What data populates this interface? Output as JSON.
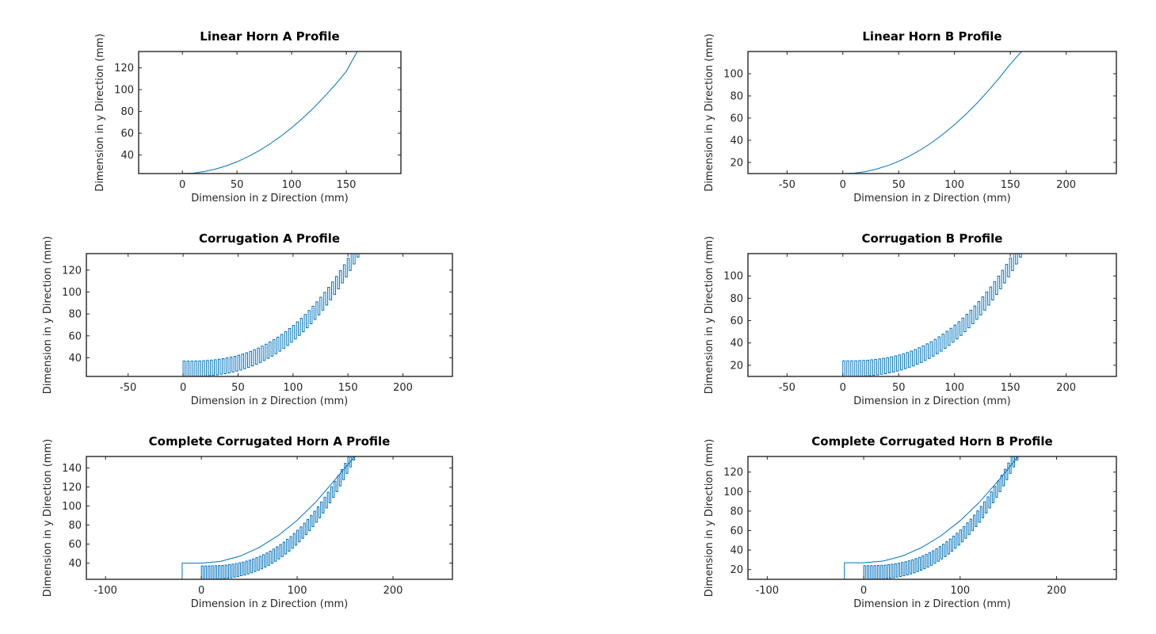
{
  "colors": {
    "series": "#0072BD",
    "axes": "#262626",
    "background": "#ffffff"
  },
  "chart_data": [
    {
      "id": "A1",
      "type": "line",
      "title": "Linear Horn A Profile",
      "xlabel": "Dimension in z Direction (mm)",
      "ylabel": "Dimension in y Direction (mm)",
      "xlim": [
        -40,
        200
      ],
      "ylim": [
        23,
        135
      ],
      "xticks": [
        0,
        50,
        100,
        150
      ],
      "yticks": [
        40,
        60,
        80,
        100,
        120
      ],
      "series": [
        {
          "kind": "curve",
          "x": [
            0,
            10,
            20,
            30,
            40,
            50,
            60,
            70,
            80,
            90,
            100,
            110,
            120,
            130,
            140,
            150,
            160
          ],
          "y": [
            23,
            23.4,
            24.8,
            27.0,
            30.0,
            33.8,
            38.4,
            43.9,
            50.1,
            57.2,
            65.0,
            73.7,
            83.2,
            93.6,
            104.7,
            116.8,
            135
          ]
        }
      ]
    },
    {
      "id": "B1",
      "type": "line",
      "title": "Linear Horn B Profile",
      "xlabel": "Dimension in z Direction (mm)",
      "ylabel": "Dimension in y Direction (mm)",
      "xlim": [
        -85,
        245
      ],
      "ylim": [
        10,
        120
      ],
      "xticks": [
        -50,
        0,
        50,
        100,
        150,
        200
      ],
      "yticks": [
        20,
        40,
        60,
        80,
        100
      ],
      "series": [
        {
          "kind": "curve",
          "x": [
            0,
            10,
            20,
            30,
            40,
            50,
            60,
            70,
            80,
            90,
            100,
            110,
            120,
            130,
            140,
            150,
            160
          ],
          "y": [
            10,
            10.4,
            11.7,
            14.0,
            17.1,
            21.0,
            25.9,
            31.6,
            38.2,
            45.7,
            54.0,
            63.2,
            73.3,
            84.3,
            96.1,
            108.6,
            120
          ]
        }
      ]
    },
    {
      "id": "A2",
      "type": "line",
      "title": "Corrugation A Profile",
      "xlabel": "Dimension in z Direction (mm)",
      "ylabel": "Dimension in y Direction (mm)",
      "xlim": [
        -88,
        245
      ],
      "ylim": [
        23,
        135
      ],
      "xticks": [
        -50,
        0,
        50,
        100,
        150,
        200
      ],
      "yticks": [
        40,
        60,
        80,
        100,
        120
      ],
      "series": [
        {
          "kind": "corrugation",
          "z_start": 0,
          "z_end": 160,
          "teeth": 45,
          "inner_y0": 23,
          "inner_y1": 135,
          "tooth_height": 14,
          "inner_exp": 2.6
        }
      ]
    },
    {
      "id": "B2",
      "type": "line",
      "title": "Corrugation B Profile",
      "xlabel": "Dimension in z Direction (mm)",
      "ylabel": "Dimension in y Direction (mm)",
      "xlim": [
        -85,
        245
      ],
      "ylim": [
        10,
        120
      ],
      "xticks": [
        -50,
        0,
        50,
        100,
        150,
        200
      ],
      "yticks": [
        20,
        40,
        60,
        80,
        100
      ],
      "series": [
        {
          "kind": "corrugation",
          "z_start": 0,
          "z_end": 160,
          "teeth": 45,
          "inner_y0": 10,
          "inner_y1": 120,
          "tooth_height": 14,
          "inner_exp": 2.6
        }
      ]
    },
    {
      "id": "A3",
      "type": "line",
      "title": "Complete Corrugated Horn A Profile",
      "xlabel": "Dimension in z Direction (mm)",
      "ylabel": "Dimension in y Direction (mm)",
      "xlim": [
        -120,
        262
      ],
      "ylim": [
        23,
        152
      ],
      "xticks": [
        -100,
        0,
        100,
        200
      ],
      "yticks": [
        40,
        60,
        80,
        100,
        120,
        140
      ],
      "series": [
        {
          "kind": "outer",
          "x": [
            -20,
            -20,
            0,
            20,
            40,
            60,
            80,
            100,
            120,
            140,
            160
          ],
          "y": [
            23,
            40,
            40,
            41.8,
            47.2,
            56.2,
            68.8,
            85.0,
            104.8,
            128.2,
            152
          ]
        },
        {
          "kind": "corrugation",
          "z_start": 0,
          "z_end": 160,
          "teeth": 45,
          "inner_y0": 23,
          "inner_y1": 152,
          "tooth_height": 14,
          "inner_exp": 2.6
        }
      ]
    },
    {
      "id": "B3",
      "type": "line",
      "title": "Complete Corrugated Horn B Profile",
      "xlabel": "Dimension in z Direction (mm)",
      "ylabel": "Dimension in y Direction (mm)",
      "xlim": [
        -120,
        262
      ],
      "ylim": [
        10,
        136
      ],
      "xticks": [
        -100,
        0,
        100,
        200
      ],
      "yticks": [
        20,
        40,
        60,
        80,
        100,
        120
      ],
      "series": [
        {
          "kind": "outer",
          "x": [
            -20,
            -20,
            0,
            20,
            40,
            60,
            80,
            100,
            120,
            140,
            160
          ],
          "y": [
            10,
            27,
            27,
            28.7,
            33.9,
            42.5,
            54.6,
            70.1,
            89.1,
            111.6,
            136
          ]
        },
        {
          "kind": "corrugation",
          "z_start": 0,
          "z_end": 160,
          "teeth": 45,
          "inner_y0": 10,
          "inner_y1": 136,
          "tooth_height": 14,
          "inner_exp": 2.6
        }
      ]
    }
  ]
}
